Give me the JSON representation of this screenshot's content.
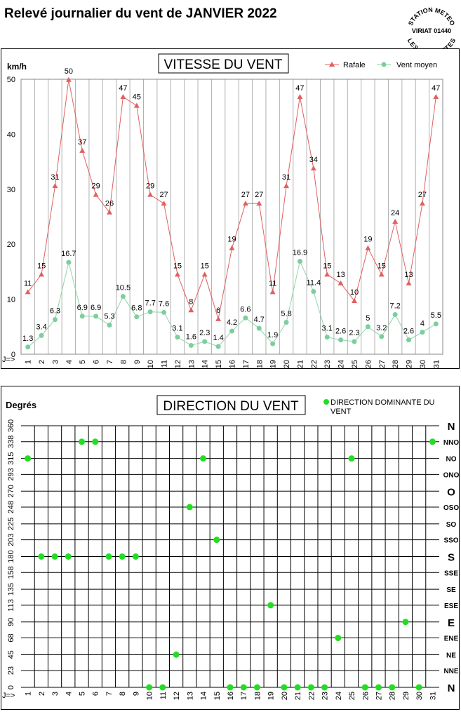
{
  "page_title": "Relevé journalier du vent de JANVIER 2022",
  "stamp": {
    "top_text": "STATION METEO",
    "middle_text": "VIRIAT 01440",
    "bottom_text": "LES FAUVETTES"
  },
  "speed_chart": {
    "title": "VITESSE DU VENT",
    "unit_label": "km/h",
    "x_prefix": "J=>",
    "legend": {
      "gust": "Rafale",
      "mean": "Vent moyen"
    },
    "colors": {
      "gust": "#e06060",
      "gust_marker": "#e06060",
      "mean": "#90d4a8",
      "mean_marker": "#7ccf9c",
      "gridline": "#b0b0b0"
    }
  },
  "direction_chart": {
    "title": "DIRECTION DU VENT",
    "unit_label": "Degrés",
    "x_prefix": "J=>",
    "legend": {
      "label": "DIRECTION DOMINANTE DU VENT"
    },
    "colors": {
      "marker": "#22dd22",
      "gridline": "#000000"
    }
  },
  "chart_data": [
    {
      "type": "line",
      "title": "VITESSE DU VENT",
      "ylabel": "km/h",
      "xlabel": "J=>",
      "ylim": [
        0,
        50
      ],
      "yticks": [
        0,
        10,
        20,
        30,
        40,
        50
      ],
      "grid": true,
      "legend_position": "top-right",
      "x": [
        1,
        2,
        3,
        4,
        5,
        6,
        7,
        8,
        9,
        10,
        11,
        12,
        13,
        14,
        15,
        16,
        17,
        18,
        19,
        20,
        21,
        22,
        23,
        24,
        25,
        26,
        27,
        28,
        29,
        30,
        31
      ],
      "series": [
        {
          "name": "Rafale",
          "values": [
            11.3,
            14.5,
            30.6,
            49.9,
            37,
            29,
            25.8,
            46.8,
            45.2,
            29,
            27.4,
            14.5,
            8,
            14.5,
            6.4,
            19.3,
            27.4,
            27.4,
            11.3,
            30.6,
            46.8,
            33.8,
            14.5,
            12.9,
            9.7,
            19.3,
            14.5,
            24.1,
            12.9,
            27.4,
            46.8
          ],
          "labels": [
            "11",
            "15",
            "31",
            "50",
            "37",
            "29",
            "26",
            "47",
            "45",
            "29",
            "27",
            "15",
            "8",
            "15",
            "6",
            "19",
            "27",
            "27",
            "11",
            "31",
            "47",
            "34",
            "15",
            "13",
            "10",
            "19",
            "15",
            "24",
            "13",
            "27",
            "47"
          ]
        },
        {
          "name": "Vent moyen",
          "values": [
            1.3,
            3.4,
            6.3,
            16.7,
            6.9,
            6.9,
            5.3,
            10.5,
            6.8,
            7.7,
            7.6,
            3.1,
            1.6,
            2.3,
            1.4,
            4.2,
            6.6,
            4.7,
            1.9,
            5.8,
            16.9,
            11.4,
            3.1,
            2.6,
            2.3,
            5,
            3.2,
            7.2,
            2.6,
            4,
            5.5
          ],
          "labels": [
            "1.3",
            "3.4",
            "6.3",
            "16.7",
            "6.9",
            "6.9",
            "5.3",
            "10.5",
            "6.8",
            "7.7",
            "7.6",
            "3.1",
            "1.6",
            "2.3",
            "1.4",
            "4.2",
            "6.6",
            "4.7",
            "1.9",
            "5.8",
            "16.9",
            "11.4",
            "3.1",
            "2.6",
            "2.3",
            "5",
            "3.2",
            "7.2",
            "2.6",
            "4",
            "5.5"
          ]
        }
      ]
    },
    {
      "type": "scatter",
      "title": "DIRECTION DU VENT",
      "ylabel": "Degrés",
      "xlabel": "J=>",
      "ylim": [
        0,
        360
      ],
      "yticks": [
        0,
        23,
        45,
        68,
        90,
        113,
        135,
        158,
        180,
        203,
        225,
        248,
        270,
        293,
        315,
        338,
        360
      ],
      "compass_labels": [
        "N",
        "NNE",
        "NE",
        "ENE",
        "E",
        "ESE",
        "SE",
        "SSE",
        "S",
        "SSO",
        "SO",
        "OSO",
        "O",
        "ONO",
        "NO",
        "NNO",
        "N"
      ],
      "grid": true,
      "legend_position": "top-right",
      "x": [
        1,
        2,
        3,
        4,
        5,
        6,
        7,
        8,
        9,
        10,
        11,
        12,
        13,
        14,
        15,
        16,
        17,
        18,
        19,
        20,
        21,
        22,
        23,
        24,
        25,
        26,
        27,
        28,
        29,
        30,
        31
      ],
      "series": [
        {
          "name": "DIRECTION DOMINANTE DU VENT",
          "values": [
            315,
            180,
            180,
            180,
            338,
            338,
            180,
            180,
            180,
            0,
            0,
            45,
            248,
            315,
            203,
            0,
            0,
            0,
            113,
            0,
            0,
            0,
            0,
            68,
            315,
            0,
            0,
            0,
            90,
            0,
            338
          ]
        }
      ]
    }
  ]
}
